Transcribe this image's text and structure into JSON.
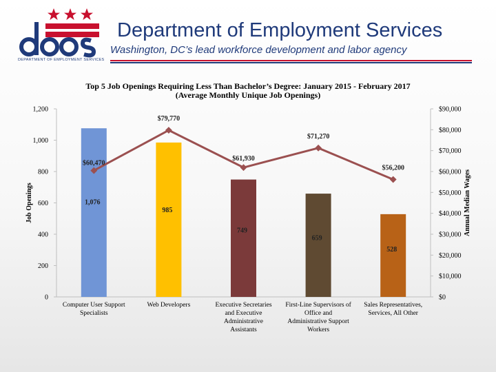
{
  "header": {
    "title": "Department of Employment Services",
    "subtitle": "Washington, DC’s lead workforce development and labor agency",
    "logo_text": "does",
    "logo_subtext": "DEPARTMENT OF EMPLOYMENT SERVICES",
    "colors": {
      "navy": "#1f3a7a",
      "red": "#c8102e"
    }
  },
  "chart_data": {
    "type": "bar",
    "title": "Top 5 Job Openings Requiring Less Than Bachelor’s Degree: January 2015 - February 2017",
    "subtitle": "(Average Monthly Unique Job Openings)",
    "categories": [
      [
        "Computer User Support",
        "Specialists"
      ],
      [
        "Web Developers"
      ],
      [
        "Executive Secretaries",
        "and Executive",
        "Administrative",
        "Assistants"
      ],
      [
        "First-Line Supervisors of",
        "Office and",
        "Administrative Support",
        "Workers"
      ],
      [
        "Sales Representatives,",
        "Services, All Other"
      ]
    ],
    "series": [
      {
        "name": "Job Openings",
        "type": "bar",
        "axis": "left",
        "values": [
          1076,
          985,
          749,
          659,
          528
        ],
        "labels": [
          "1,076",
          "985",
          "749",
          "659",
          "528"
        ],
        "colors": [
          "#7095d6",
          "#ffc000",
          "#7b3a3a",
          "#5f4a32",
          "#b86217"
        ]
      },
      {
        "name": "Annual Median Wages",
        "type": "line",
        "axis": "right",
        "values": [
          60470,
          79770,
          61930,
          71270,
          56200
        ],
        "labels": [
          "$60,470",
          "$79,770",
          "$61,930",
          "$71,270",
          "$56,200"
        ],
        "color": "#9b5050"
      }
    ],
    "ylabel": "Job Openings",
    "y2label": "Annual Median Wages",
    "ylim": [
      0,
      1200
    ],
    "y2lim": [
      0,
      90000
    ],
    "yticks": [
      "0",
      "200",
      "400",
      "600",
      "800",
      "1,000",
      "1,200"
    ],
    "y2ticks": [
      "$0",
      "$10,000",
      "$20,000",
      "$30,000",
      "$40,000",
      "$50,000",
      "$60,000",
      "$70,000",
      "$80,000",
      "$90,000"
    ],
    "grid": false
  }
}
